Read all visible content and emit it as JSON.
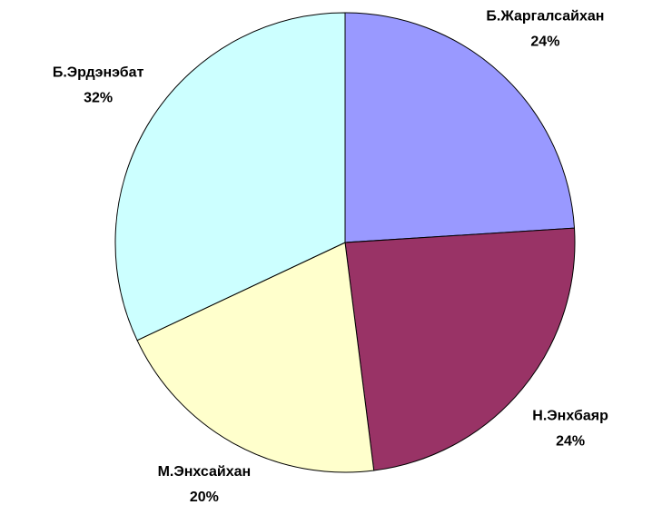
{
  "chart_data": {
    "type": "pie",
    "categories": [
      "Б.Жаргалсайхан",
      "Н.Энхбаяр",
      "М.Энхсайхан",
      "Б.Эрдэнэбат"
    ],
    "values": [
      24,
      24,
      20,
      32
    ],
    "value_labels": [
      "24%",
      "24%",
      "20%",
      "32%"
    ],
    "colors": [
      "#9999ff",
      "#993366",
      "#ffffcc",
      "#ccffff"
    ]
  }
}
